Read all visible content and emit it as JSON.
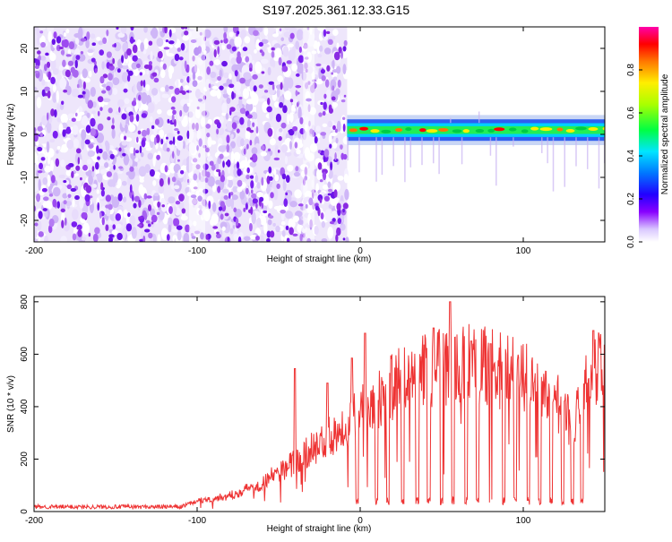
{
  "title": "S197.2025.361.12.33.G15",
  "chart_data": [
    {
      "type": "heatmap",
      "xlabel": "Height of straight line (km)",
      "ylabel": "Frequency (Hz)",
      "xlim": [
        -200,
        150
      ],
      "ylim": [
        -25,
        25
      ],
      "x_ticks": [
        -200,
        -100,
        0,
        100
      ],
      "y_ticks": [
        -20,
        -10,
        0,
        10,
        20
      ],
      "noise_region_x": [
        -200,
        -8
      ],
      "signal_band": {
        "x_start": -8,
        "x_end": 150,
        "center_hz": 1,
        "width_hz": 3
      },
      "colorbar": {
        "label": "Normalized spectral amplitude",
        "ticks": [
          "0.0",
          "0.2",
          "0.4",
          "0.6",
          "0.8"
        ],
        "range": [
          0,
          1
        ]
      }
    },
    {
      "type": "line",
      "xlabel": "Height of straight line (km)",
      "ylabel": "SNR (10 * v/v)",
      "xlim": [
        -200,
        150
      ],
      "ylim": [
        0,
        820
      ],
      "x_ticks": [
        -200,
        -100,
        0,
        100
      ],
      "y_ticks": [
        0,
        200,
        400,
        600,
        800
      ],
      "color": "#ee3333",
      "profile": [
        [
          -200,
          18
        ],
        [
          -110,
          18
        ],
        [
          -100,
          40
        ],
        [
          -80,
          60
        ],
        [
          -60,
          110
        ],
        [
          -40,
          190
        ],
        [
          -20,
          280
        ],
        [
          0,
          380
        ],
        [
          20,
          480
        ],
        [
          40,
          540
        ],
        [
          60,
          570
        ],
        [
          80,
          550
        ],
        [
          100,
          510
        ],
        [
          120,
          420
        ],
        [
          130,
          330
        ],
        [
          140,
          520
        ],
        [
          150,
          560
        ]
      ],
      "dropouts_x": [
        -2,
        10,
        17,
        26,
        35,
        42,
        50,
        57,
        65,
        72,
        80,
        88,
        95,
        103,
        110,
        117,
        124,
        130,
        136
      ],
      "spikes": [
        [
          -40,
          545
        ],
        [
          -20,
          490
        ],
        [
          -5,
          585
        ],
        [
          3,
          680
        ],
        [
          45,
          700
        ],
        [
          55,
          800
        ],
        [
          68,
          650
        ],
        [
          80,
          640
        ],
        [
          143,
          690
        ]
      ]
    }
  ]
}
